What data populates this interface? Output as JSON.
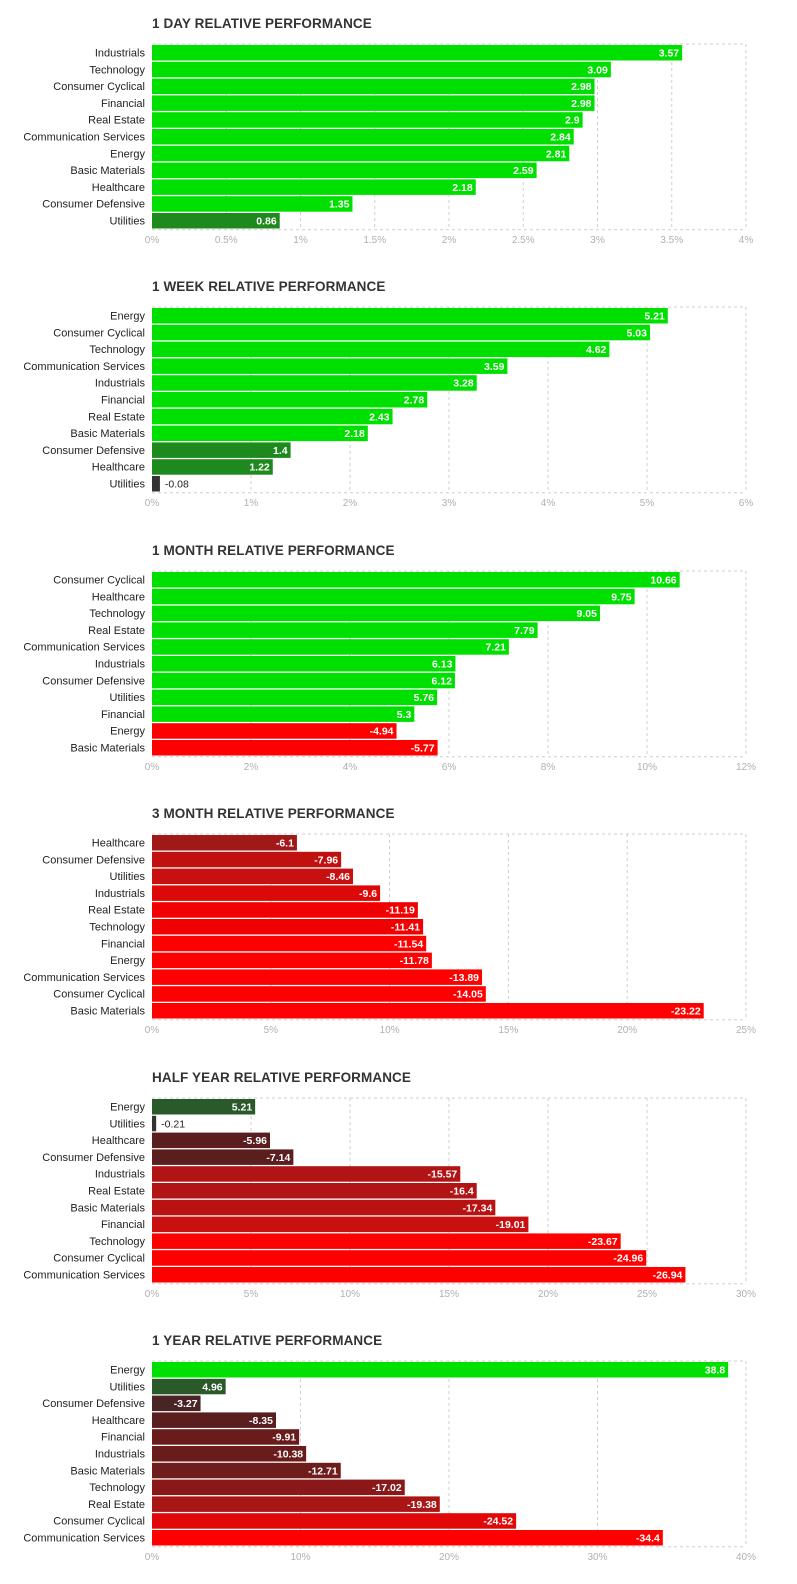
{
  "chart_data": [
    {
      "type": "bar",
      "title": "1 DAY RELATIVE PERFORMANCE",
      "categories": [
        "Industrials",
        "Technology",
        "Consumer Cyclical",
        "Financial",
        "Real Estate",
        "Communication Services",
        "Energy",
        "Basic Materials",
        "Healthcare",
        "Consumer Defensive",
        "Utilities"
      ],
      "values": [
        3.57,
        3.09,
        2.98,
        2.98,
        2.9,
        2.84,
        2.81,
        2.59,
        2.18,
        1.35,
        0.86
      ],
      "value_labels": [
        "3.57",
        "3.09",
        "2.98",
        "2.98",
        "2.9",
        "2.84",
        "2.81",
        "2.59",
        "2.18",
        "1.35",
        "0.86"
      ],
      "bar_colors": [
        "#00e000",
        "#00e000",
        "#00e000",
        "#00e000",
        "#00e000",
        "#00e000",
        "#00e000",
        "#00e000",
        "#00e000",
        "#00e000",
        "#1e8a1e"
      ],
      "xlim": [
        0,
        4
      ],
      "ticks": [
        0,
        0.5,
        1,
        1.5,
        2,
        2.5,
        3,
        3.5,
        4
      ],
      "tick_labels": [
        "0%",
        "0.5%",
        "1%",
        "1.5%",
        "2%",
        "2.5%",
        "3%",
        "3.5%",
        "4%"
      ],
      "scale": "absolute"
    },
    {
      "type": "bar",
      "title": "1 WEEK RELATIVE PERFORMANCE",
      "categories": [
        "Energy",
        "Consumer Cyclical",
        "Technology",
        "Communication Services",
        "Industrials",
        "Financial",
        "Real Estate",
        "Basic Materials",
        "Consumer Defensive",
        "Healthcare",
        "Utilities"
      ],
      "values": [
        5.21,
        5.03,
        4.62,
        3.59,
        3.28,
        2.78,
        2.43,
        2.18,
        1.4,
        1.22,
        -0.08
      ],
      "value_labels": [
        "5.21",
        "5.03",
        "4.62",
        "3.59",
        "3.28",
        "2.78",
        "2.43",
        "2.18",
        "1.4",
        "1.22",
        "-0.08"
      ],
      "bar_colors": [
        "#00e000",
        "#00e000",
        "#00e000",
        "#00e000",
        "#00e000",
        "#00e000",
        "#00e000",
        "#00e000",
        "#1e8a1e",
        "#1e8a1e",
        "#333333"
      ],
      "xlim": [
        0,
        6
      ],
      "ticks": [
        0,
        1,
        2,
        3,
        4,
        5,
        6
      ],
      "tick_labels": [
        "0%",
        "1%",
        "2%",
        "3%",
        "4%",
        "5%",
        "6%"
      ],
      "scale": "absolute"
    },
    {
      "type": "bar",
      "title": "1 MONTH RELATIVE PERFORMANCE",
      "categories": [
        "Consumer Cyclical",
        "Healthcare",
        "Technology",
        "Real Estate",
        "Communication Services",
        "Industrials",
        "Consumer Defensive",
        "Utilities",
        "Financial",
        "Energy",
        "Basic Materials"
      ],
      "values": [
        10.66,
        9.75,
        9.05,
        7.79,
        7.21,
        6.13,
        6.12,
        5.76,
        5.3,
        -4.94,
        -5.77
      ],
      "value_labels": [
        "10.66",
        "9.75",
        "9.05",
        "7.79",
        "7.21",
        "6.13",
        "6.12",
        "5.76",
        "5.3",
        "-4.94",
        "-5.77"
      ],
      "bar_colors": [
        "#00e000",
        "#00e000",
        "#00e000",
        "#00e000",
        "#00e000",
        "#00e000",
        "#00e000",
        "#00e000",
        "#00e000",
        "#ff0000",
        "#ff0000"
      ],
      "xlim": [
        0,
        12
      ],
      "ticks": [
        0,
        2,
        4,
        6,
        8,
        10,
        12
      ],
      "tick_labels": [
        "0%",
        "2%",
        "4%",
        "6%",
        "8%",
        "10%",
        "12%"
      ],
      "scale": "absolute"
    },
    {
      "type": "bar",
      "title": "3 MONTH RELATIVE PERFORMANCE",
      "categories": [
        "Healthcare",
        "Consumer Defensive",
        "Utilities",
        "Industrials",
        "Real Estate",
        "Technology",
        "Financial",
        "Energy",
        "Communication Services",
        "Consumer Cyclical",
        "Basic Materials"
      ],
      "values": [
        -6.1,
        -7.96,
        -8.46,
        -9.6,
        -11.19,
        -11.41,
        -11.54,
        -11.78,
        -13.89,
        -14.05,
        -23.22
      ],
      "value_labels": [
        "-6.1",
        "-7.96",
        "-8.46",
        "-9.6",
        "-11.19",
        "-11.41",
        "-11.54",
        "-11.78",
        "-13.89",
        "-14.05",
        "-23.22"
      ],
      "bar_colors": [
        "#a01818",
        "#c01010",
        "#c81010",
        "#dd0808",
        "#f00000",
        "#f00000",
        "#ff0000",
        "#ff0000",
        "#ff0000",
        "#ff0000",
        "#ff0000"
      ],
      "xlim": [
        0,
        25
      ],
      "ticks": [
        0,
        5,
        10,
        15,
        20,
        25
      ],
      "tick_labels": [
        "0%",
        "5%",
        "10%",
        "15%",
        "20%",
        "25%"
      ],
      "scale": "absolute"
    },
    {
      "type": "bar",
      "title": "HALF YEAR RELATIVE PERFORMANCE",
      "categories": [
        "Energy",
        "Utilities",
        "Healthcare",
        "Consumer Defensive",
        "Industrials",
        "Real Estate",
        "Basic Materials",
        "Financial",
        "Technology",
        "Consumer Cyclical",
        "Communication Services"
      ],
      "values": [
        5.21,
        -0.21,
        -5.96,
        -7.14,
        -15.57,
        -16.4,
        -17.34,
        -19.01,
        -23.67,
        -24.96,
        -26.94
      ],
      "value_labels": [
        "5.21",
        "-0.21",
        "-5.96",
        "-7.14",
        "-15.57",
        "-16.4",
        "-17.34",
        "-19.01",
        "-23.67",
        "-24.96",
        "-26.94"
      ],
      "bar_colors": [
        "#2a5a2a",
        "#333333",
        "#5a1e1e",
        "#5a1e1e",
        "#b01414",
        "#b01414",
        "#b81212",
        "#c81010",
        "#ff0000",
        "#ff0000",
        "#ff0000"
      ],
      "xlim": [
        0,
        30
      ],
      "ticks": [
        0,
        5,
        10,
        15,
        20,
        25,
        30
      ],
      "tick_labels": [
        "0%",
        "5%",
        "10%",
        "15%",
        "20%",
        "25%",
        "30%"
      ],
      "scale": "absolute"
    },
    {
      "type": "bar",
      "title": "1 YEAR RELATIVE PERFORMANCE",
      "categories": [
        "Energy",
        "Utilities",
        "Consumer Defensive",
        "Healthcare",
        "Financial",
        "Industrials",
        "Basic Materials",
        "Technology",
        "Real Estate",
        "Consumer Cyclical",
        "Communication Services"
      ],
      "values": [
        38.8,
        4.96,
        -3.27,
        -8.35,
        -9.91,
        -10.38,
        -12.71,
        -17.02,
        -19.38,
        -24.52,
        -34.4
      ],
      "value_labels": [
        "38.8",
        "4.96",
        "-3.27",
        "-8.35",
        "-9.91",
        "-10.38",
        "-12.71",
        "-17.02",
        "-19.38",
        "-24.52",
        "-34.4"
      ],
      "bar_colors": [
        "#00e000",
        "#2a5a2a",
        "#4a2424",
        "#5a1e1e",
        "#6a1c1c",
        "#6a1c1c",
        "#6e1c1c",
        "#8a1818",
        "#a81616",
        "#e00808",
        "#ff0000"
      ],
      "xlim": [
        0,
        40
      ],
      "ticks": [
        0,
        10,
        20,
        30,
        40
      ],
      "tick_labels": [
        "0%",
        "10%",
        "20%",
        "30%",
        "40%"
      ],
      "scale": "absolute"
    }
  ]
}
